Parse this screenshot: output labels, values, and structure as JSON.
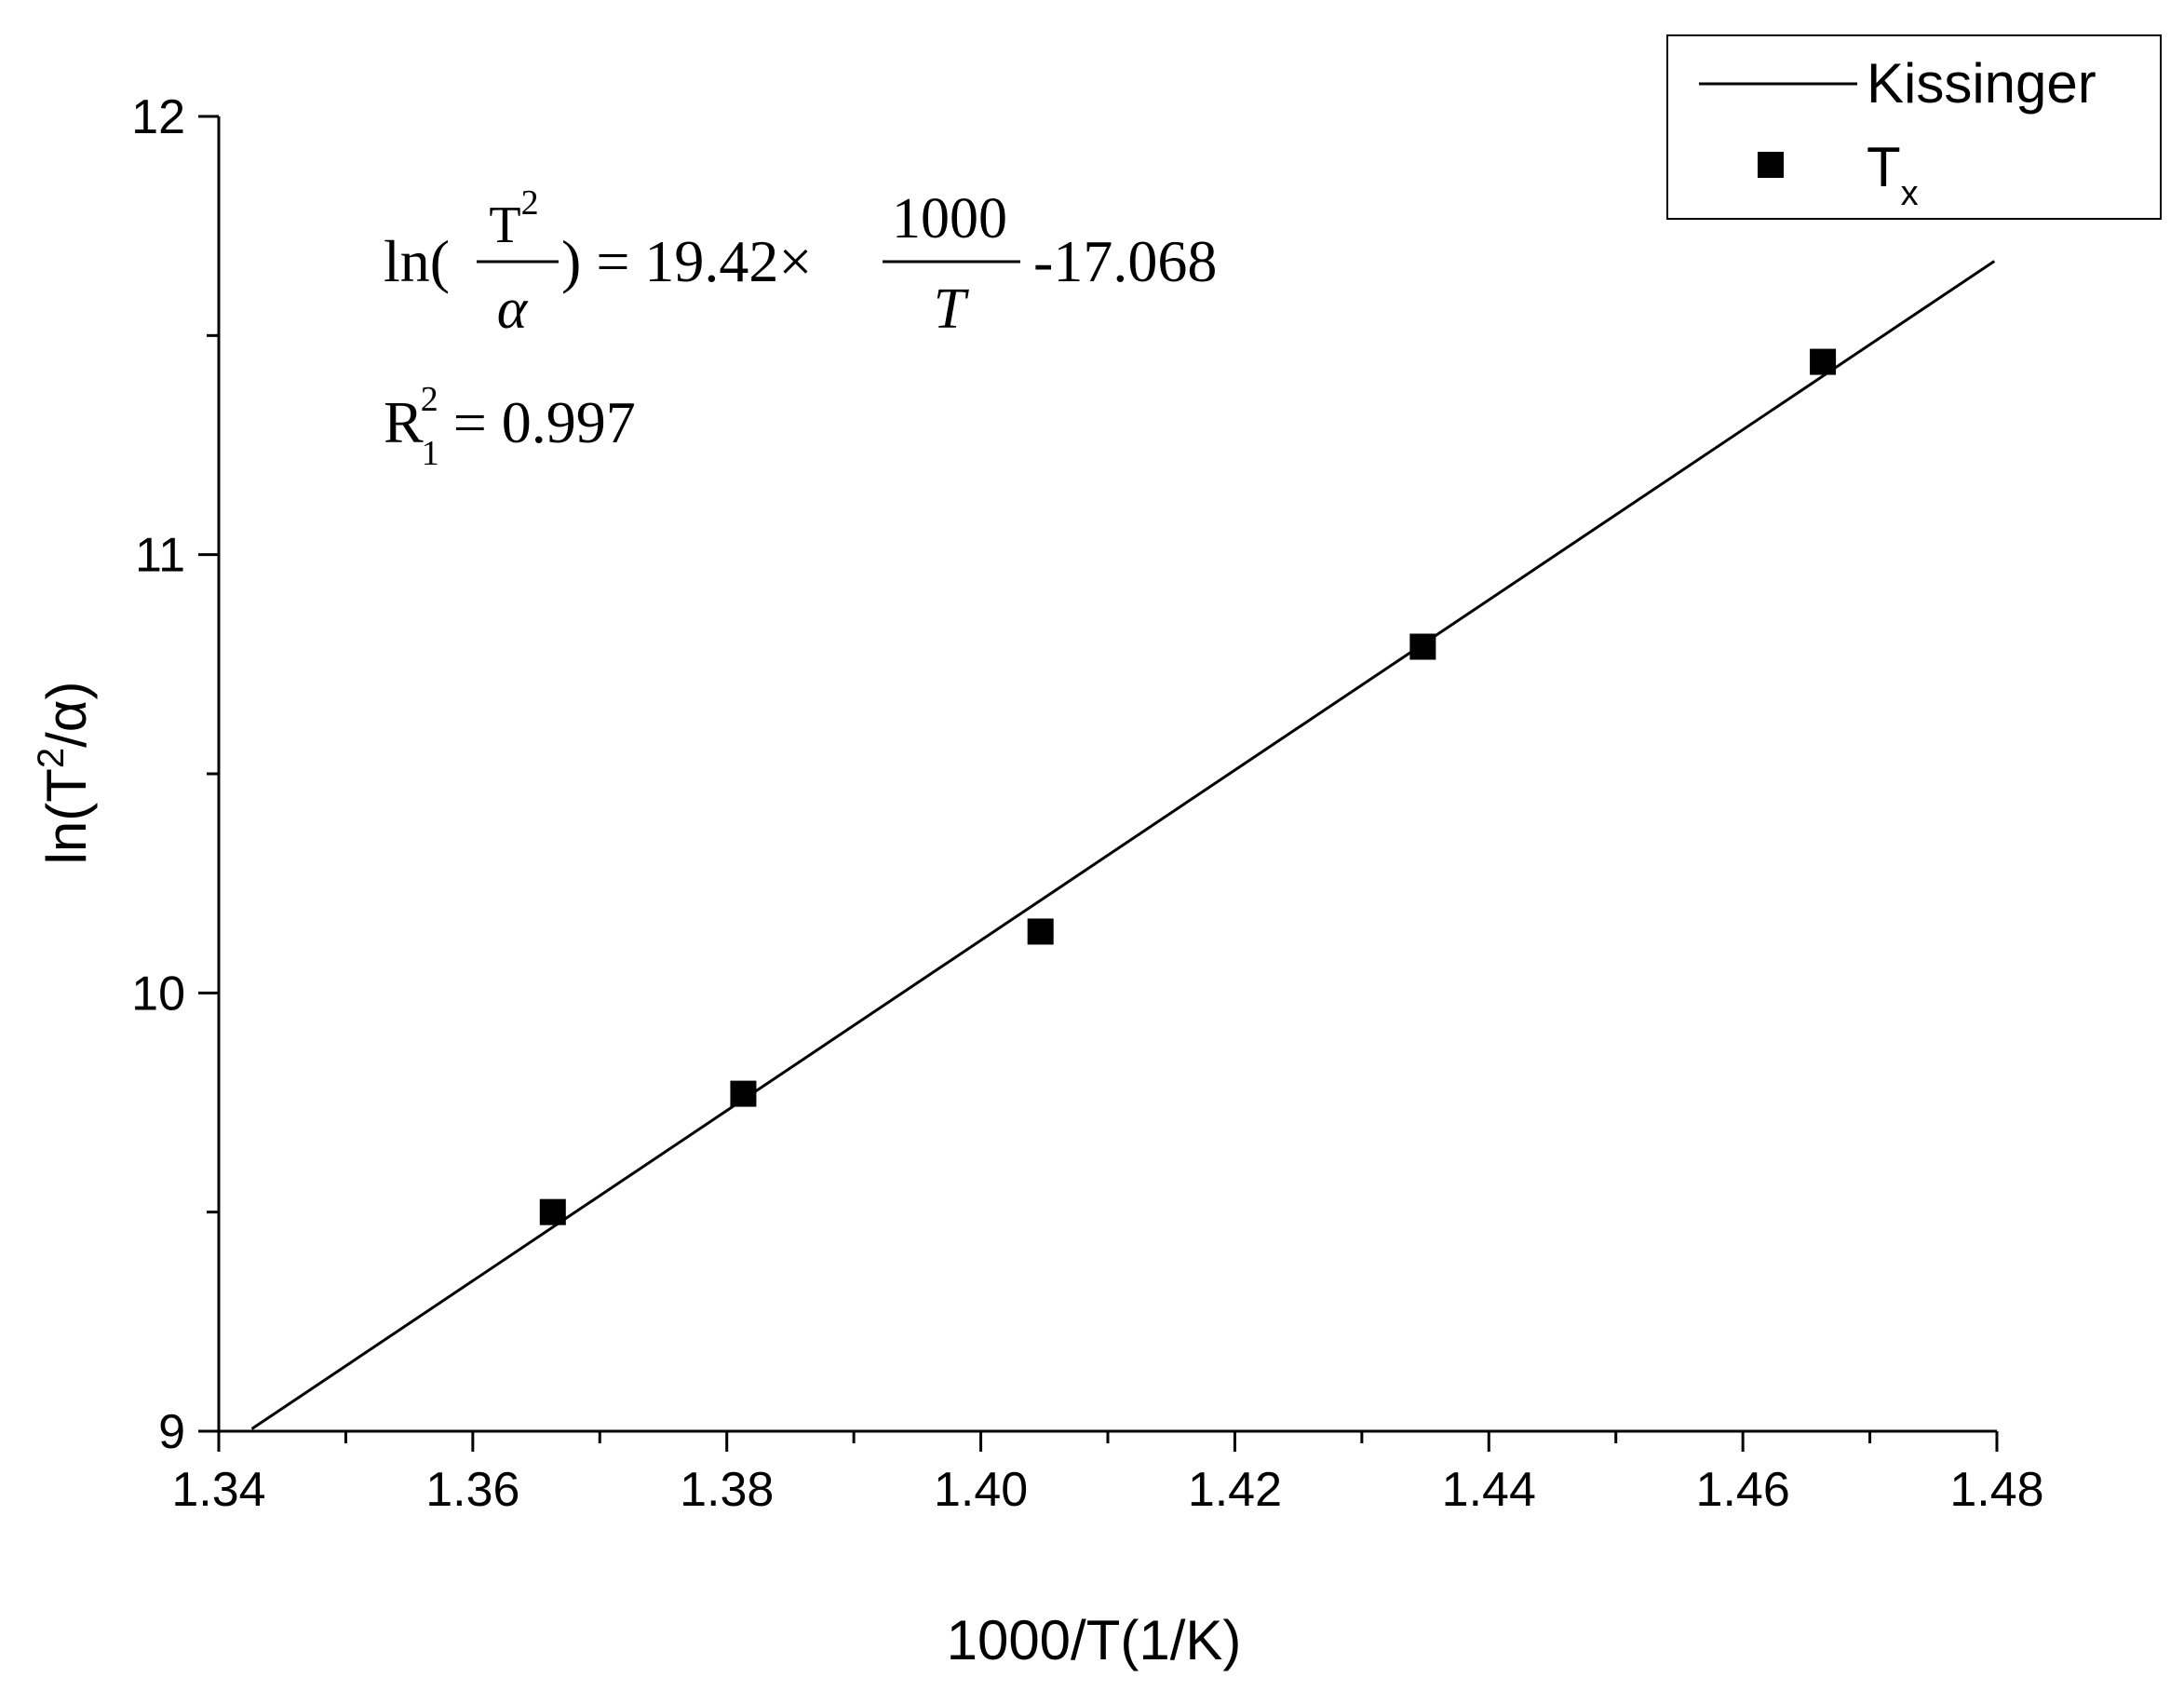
{
  "chart_data": {
    "type": "scatter",
    "title": "",
    "xlabel": "1000/T(1/K)",
    "ylabel": {
      "prefix": "ln(T",
      "sup": "2",
      "suffix": "/α)"
    },
    "xlim": [
      1.34,
      1.48
    ],
    "ylim": [
      9,
      12
    ],
    "x_ticks": [
      1.34,
      1.36,
      1.38,
      1.4,
      1.42,
      1.44,
      1.46,
      1.48
    ],
    "x_tick_labels": [
      "1.34",
      "1.36",
      "1.38",
      "1.40",
      "1.42",
      "1.44",
      "1.46",
      "1.48"
    ],
    "y_ticks": [
      9,
      10,
      11,
      12
    ],
    "y_tick_labels": [
      "9",
      "10",
      "11",
      "12"
    ],
    "grid": false,
    "legend_position": "top-right",
    "series": [
      {
        "name": "Kissinger",
        "kind": "line",
        "slope": 19.42,
        "intercept": -17.068,
        "x_range": [
          1.3426,
          1.4798
        ]
      },
      {
        "name": "T",
        "name_sub": "x",
        "kind": "scatter",
        "marker": "square",
        "points": [
          {
            "x": 1.3663,
            "y": 9.5
          },
          {
            "x": 1.3813,
            "y": 9.77
          },
          {
            "x": 1.4047,
            "y": 10.14
          },
          {
            "x": 1.4348,
            "y": 10.79
          },
          {
            "x": 1.4663,
            "y": 11.44
          }
        ]
      }
    ],
    "annotations": {
      "equation": {
        "ln": "ln(",
        "frac1_num": "T",
        "frac1_num_sup": "2",
        "frac1_den": "α",
        "middle": ") = 19.42×",
        "frac2_num": "1000",
        "frac2_den": "T",
        "tail": "-17.068"
      },
      "r_squared": {
        "base": "R",
        "sub": "1",
        "sup": "2",
        "rest": " = 0.997"
      }
    }
  }
}
